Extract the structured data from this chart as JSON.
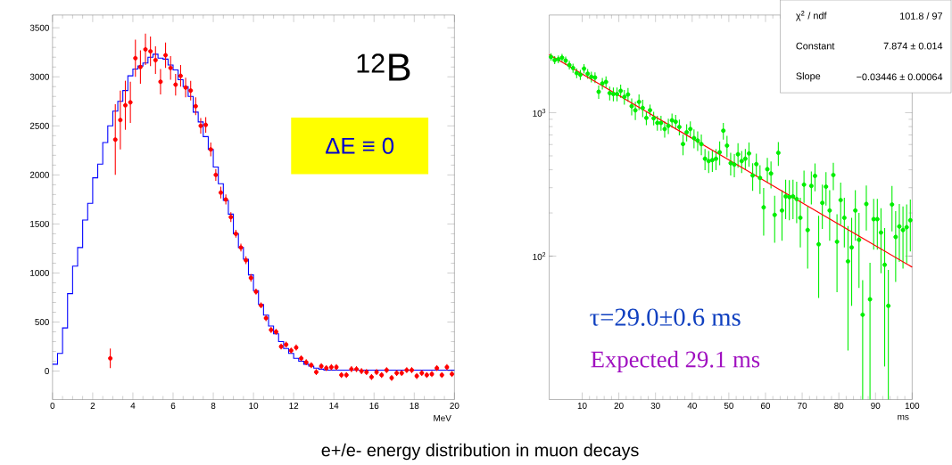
{
  "chart_data": [
    {
      "type": "histogram",
      "xlabel": "MeV",
      "xlim": [
        0,
        20
      ],
      "ylim": [
        -290,
        3630
      ],
      "xticks": [
        0,
        2,
        4,
        6,
        8,
        10,
        12,
        14,
        16,
        18,
        20
      ],
      "yticks": [
        0,
        500,
        1000,
        1500,
        2000,
        2500,
        3000,
        3500
      ],
      "marker": "circle",
      "bins": [
        0,
        0.25,
        0.5,
        0.75,
        1,
        1.25,
        1.5,
        1.75,
        2,
        2.25,
        2.5,
        2.75,
        3,
        3.25,
        3.5,
        3.75,
        4,
        4.25,
        4.5,
        4.75,
        5,
        5.25,
        5.5,
        5.75,
        6,
        6.25,
        6.5,
        6.75,
        7,
        7.25,
        7.5,
        7.75,
        8,
        8.25,
        8.5,
        8.75,
        9,
        9.25,
        9.5,
        9.75,
        10,
        10.25,
        10.5,
        10.75,
        11,
        11.25,
        11.5,
        11.75,
        12,
        12.25,
        12.5,
        12.75,
        13,
        13.25,
        13.5,
        13.75,
        14,
        14.25,
        14.5,
        14.75,
        15,
        15.25,
        15.5,
        15.75,
        16,
        16.25,
        16.5,
        16.75,
        17,
        17.25,
        17.5,
        17.75,
        18,
        18.25,
        18.5,
        18.75,
        19,
        19.25,
        19.5,
        19.75,
        20
      ],
      "series": [
        {
          "color": "#0000ff",
          "values": [
            70,
            180,
            440,
            790,
            1070,
            1260,
            1540,
            1710,
            1970,
            2110,
            2330,
            2500,
            2650,
            2750,
            2860,
            3010,
            3080,
            3110,
            3140,
            3200,
            3230,
            3190,
            3180,
            3120,
            3070,
            2970,
            2900,
            2800,
            2640,
            2540,
            2390,
            2260,
            2080,
            1910,
            1740,
            1600,
            1400,
            1260,
            1140,
            980,
            820,
            680,
            570,
            460,
            380,
            300,
            230,
            180,
            130,
            100,
            70,
            50,
            30,
            20,
            10,
            10,
            10,
            10,
            10,
            10,
            10,
            10,
            10,
            10,
            10,
            10,
            10,
            10,
            10,
            10,
            10,
            10,
            10,
            10,
            10,
            10,
            10,
            10,
            10,
            10
          ]
        },
        {
          "type": "scatter",
          "color": "#ff0000",
          "x": [
            2.875,
            3.125,
            3.375,
            3.625,
            3.875,
            4.125,
            4.375,
            4.625,
            4.875,
            5.125,
            5.375,
            5.625,
            5.875,
            6.125,
            6.375,
            6.625,
            6.875,
            7.125,
            7.375,
            7.625,
            7.875,
            8.125,
            8.375,
            8.625,
            8.875,
            9.125,
            9.375,
            9.625,
            9.875,
            10.125,
            10.375,
            10.625,
            10.875,
            11.125,
            11.375,
            11.625,
            11.875,
            12.125,
            12.375,
            12.625,
            12.875,
            13.125,
            13.375,
            13.625,
            13.875,
            14.125,
            14.375,
            14.625,
            14.875,
            15.125,
            15.375,
            15.625,
            15.875,
            16.125,
            16.375,
            16.625,
            16.875,
            17.125,
            17.375,
            17.625,
            17.875,
            18.125,
            18.375,
            18.625,
            18.875,
            19.125,
            19.375,
            19.625,
            19.875
          ],
          "values": [
            130,
            2360,
            2560,
            2710,
            2740,
            3190,
            3100,
            3280,
            3260,
            3170,
            2950,
            3220,
            3090,
            2920,
            3010,
            2890,
            2860,
            2700,
            2500,
            2510,
            2260,
            2000,
            1820,
            1750,
            1570,
            1400,
            1260,
            1130,
            950,
            810,
            670,
            540,
            420,
            400,
            250,
            270,
            210,
            240,
            130,
            90,
            60,
            -10,
            50,
            30,
            40,
            40,
            -40,
            -40,
            20,
            20,
            0,
            -10,
            -60,
            -10,
            -40,
            10,
            -70,
            -20,
            -20,
            10,
            10,
            -50,
            -20,
            -40,
            -30,
            30,
            -40,
            40,
            -30
          ],
          "errors": [
            100,
            360,
            300,
            250,
            210,
            190,
            170,
            160,
            150,
            140,
            130,
            130,
            120,
            110,
            110,
            100,
            100,
            90,
            80,
            80,
            70,
            60,
            60,
            50,
            50,
            40,
            40,
            40,
            40,
            30,
            30,
            30,
            30,
            30,
            30,
            30,
            30,
            30,
            30,
            30,
            30,
            30,
            30,
            30,
            30,
            30,
            30,
            30,
            30,
            30,
            30,
            30,
            30,
            30,
            30,
            30,
            30,
            30,
            30,
            30,
            30,
            30,
            30,
            30,
            30,
            30,
            30,
            30,
            30
          ]
        }
      ],
      "annotations": [
        "$^{12}$B",
        "ΔE ≡ 0",
        "e+/e- energy distribution in muon decays"
      ]
    },
    {
      "type": "scatter",
      "xlabel": "ms",
      "xlim": [
        1,
        100
      ],
      "ylim": [
        10,
        4800
      ],
      "log": "y",
      "xticks": [
        10,
        20,
        30,
        40,
        50,
        60,
        70,
        80,
        90,
        100
      ],
      "yticks": [
        {
          "value": 100,
          "label": "10$^{2}$"
        },
        {
          "value": 1000,
          "label": "10$^{3}$"
        }
      ],
      "marker": "circle",
      "series": [
        {
          "color": "#00ee00",
          "x": [
            1.5,
            2.5,
            3.5,
            4.5,
            5.5,
            6.5,
            7.5,
            8.5,
            9.5,
            10.5,
            11.5,
            12.5,
            13.5,
            14.5,
            15.5,
            16.5,
            17.5,
            18.5,
            19.5,
            20.5,
            21.5,
            22.5,
            23.5,
            24.5,
            25.5,
            26.5,
            27.5,
            28.5,
            29.5,
            30.5,
            31.5,
            32.5,
            33.5,
            34.5,
            35.5,
            36.5,
            37.5,
            38.5,
            39.5,
            40.5,
            41.5,
            42.5,
            43.5,
            44.5,
            45.5,
            46.5,
            47.5,
            48.5,
            49.5,
            50.5,
            51.5,
            52.5,
            53.5,
            54.5,
            55.5,
            56.5,
            57.5,
            58.5,
            59.5,
            60.5,
            61.5,
            62.5,
            63.5,
            64.5,
            65.5,
            66.5,
            67.5,
            68.5,
            69.5,
            70.5,
            71.5,
            72.5,
            73.5,
            74.5,
            75.5,
            76.5,
            77.5,
            78.5,
            79.5,
            80.5,
            81.5,
            82.5,
            83.5,
            84.5,
            85.5,
            86.5,
            87.5,
            88.5,
            89.5,
            90.5,
            91.5,
            92.5,
            93.5,
            94.5,
            95.5,
            96.5,
            97.5,
            98.5,
            99.5
          ],
          "values": [
            2450,
            2330,
            2360,
            2420,
            2310,
            2150,
            2050,
            1890,
            1840,
            2030,
            1870,
            1780,
            1760,
            1400,
            1600,
            1640,
            1370,
            1350,
            1350,
            1420,
            1290,
            1340,
            1110,
            1040,
            1190,
            1080,
            920,
            1040,
            915,
            850,
            850,
            770,
            810,
            885,
            865,
            795,
            605,
            730,
            770,
            665,
            640,
            605,
            478,
            460,
            467,
            478,
            530,
            750,
            590,
            445,
            435,
            513,
            460,
            478,
            520,
            365,
            438,
            351,
            219,
            404,
            377,
            194,
            525,
            208,
            261,
            258,
            261,
            250,
            185,
            315,
            152,
            309,
            363,
            121,
            235,
            305,
            208,
            368,
            126,
            246,
            185,
            92,
            115,
            208,
            130,
            39,
            231,
            50,
            181,
            181,
            146,
            87,
            45,
            229,
            136,
            161,
            152,
            159,
            178
          ],
          "errors": [
            150,
            150,
            150,
            150,
            150,
            150,
            150,
            150,
            150,
            150,
            150,
            150,
            150,
            150,
            150,
            150,
            150,
            150,
            150,
            150,
            150,
            150,
            150,
            150,
            150,
            150,
            100,
            100,
            100,
            100,
            100,
            100,
            100,
            100,
            100,
            100,
            100,
            100,
            100,
            100,
            100,
            100,
            80,
            80,
            80,
            80,
            100,
            100,
            100,
            80,
            80,
            100,
            80,
            80,
            100,
            80,
            80,
            80,
            80,
            80,
            80,
            70,
            100,
            80,
            80,
            80,
            80,
            80,
            70,
            80,
            70,
            80,
            80,
            70,
            80,
            80,
            80,
            80,
            70,
            80,
            70,
            70,
            70,
            80,
            70,
            29,
            80,
            40,
            70,
            70,
            70,
            70,
            35,
            80,
            70,
            70,
            70,
            70,
            70
          ]
        },
        {
          "type": "line",
          "color": "#ff0000",
          "marker": "none",
          "x": [
            1,
            25,
            50,
            75,
            100
          ],
          "values": [
            2541,
            1110,
            469,
            198,
            83.8
          ]
        }
      ],
      "annotations": [
        "τ=29.0±0.6 ms",
        "Expected 29.1 ms",
        "χ$^{2}$ / ndf",
        "101.8 / 97",
        "Constant",
        "7.874 ± 0.014",
        "Slope",
        "−0.03446 ± 0.00064"
      ]
    }
  ]
}
